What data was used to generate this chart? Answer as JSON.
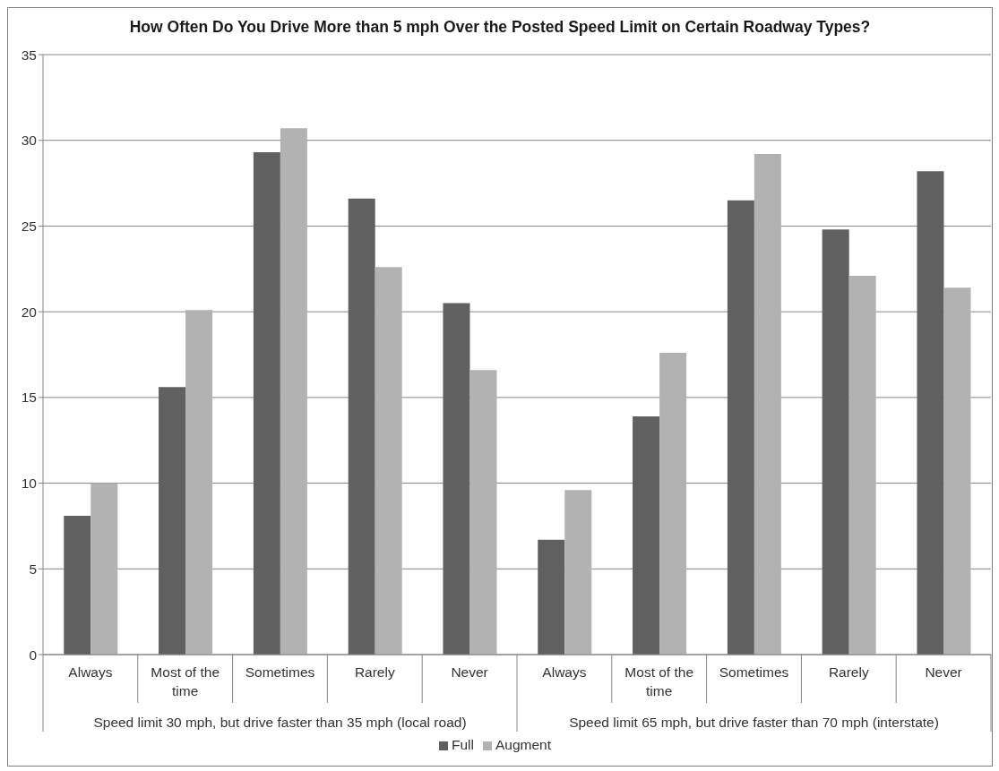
{
  "chart_data": {
    "type": "bar",
    "title": "How Often Do You Drive More than 5 mph Over the Posted Speed Limit on Certain Roadway Types?",
    "categories": [
      "Always",
      "Most of the time",
      "Sometimes",
      "Rarely",
      "Never",
      "Always",
      "Most of the time",
      "Sometimes",
      "Rarely",
      "Never"
    ],
    "annotations": [
      "Speed limit 30 mph, but drive faster than 35 mph (local road)",
      "Speed limit 65 mph, but drive faster than 70 mph (interstate)"
    ],
    "series": [
      {
        "name": "Full",
        "color": "#606060",
        "values": [
          8.1,
          15.6,
          29.3,
          26.6,
          20.5,
          6.7,
          13.9,
          26.5,
          24.8,
          28.2
        ]
      },
      {
        "name": "Augment",
        "color": "#b2b2b2",
        "values": [
          10.0,
          20.1,
          30.7,
          22.6,
          16.6,
          9.6,
          17.6,
          29.2,
          22.1,
          21.4
        ]
      }
    ],
    "ylim": [
      0,
      35
    ],
    "yticks": [
      0,
      5,
      10,
      15,
      20,
      25,
      30,
      35
    ],
    "grid": "y",
    "legend": "bottom"
  }
}
